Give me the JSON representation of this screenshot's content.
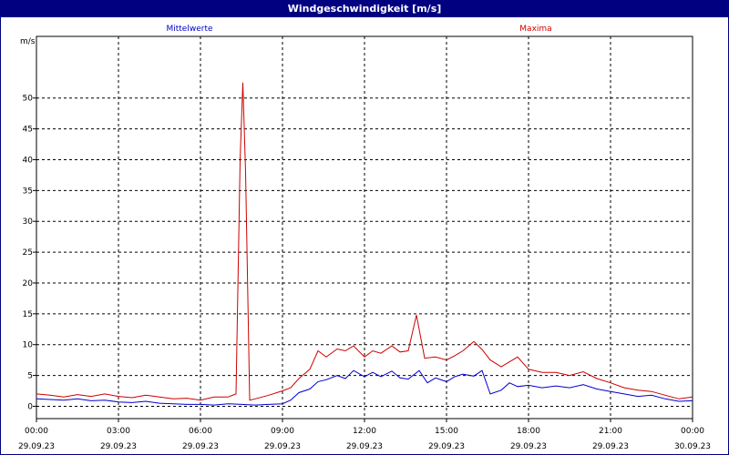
{
  "title": "Windgeschwindigkeit [m/s]",
  "colors": {
    "mittelwerte": "#0000cc",
    "maxima": "#cc0000",
    "titlebar": "#000080"
  },
  "chart_data": {
    "type": "line",
    "title": "Windgeschwindigkeit [m/s]",
    "ylabel": "m/s",
    "ylim": [
      -2,
      60
    ],
    "yticks": [
      0,
      5,
      10,
      15,
      20,
      25,
      30,
      35,
      40,
      45,
      50
    ],
    "xlim": [
      0,
      24
    ],
    "xticks": [
      {
        "x": 0,
        "time": "00:00",
        "date": "29.09.23"
      },
      {
        "x": 3,
        "time": "03:00",
        "date": "29.09.23"
      },
      {
        "x": 6,
        "time": "06:00",
        "date": "29.09.23"
      },
      {
        "x": 9,
        "time": "09:00",
        "date": "29.09.23"
      },
      {
        "x": 12,
        "time": "12:00",
        "date": "29.09.23"
      },
      {
        "x": 15,
        "time": "15:00",
        "date": "29.09.23"
      },
      {
        "x": 18,
        "time": "18:00",
        "date": "29.09.23"
      },
      {
        "x": 21,
        "time": "21:00",
        "date": "29.09.23"
      },
      {
        "x": 24,
        "time": "00:00",
        "date": "30.09.23"
      }
    ],
    "grid": true,
    "legend": "top",
    "series": [
      {
        "name": "Mittelwerte",
        "color": "#0000cc",
        "points": [
          [
            0,
            1.2
          ],
          [
            0.5,
            1.1
          ],
          [
            1,
            1.0
          ],
          [
            1.5,
            1.2
          ],
          [
            2,
            0.9
          ],
          [
            2.5,
            1.0
          ],
          [
            3,
            0.7
          ],
          [
            3.5,
            0.6
          ],
          [
            4,
            0.8
          ],
          [
            4.5,
            0.5
          ],
          [
            5,
            0.4
          ],
          [
            5.5,
            0.3
          ],
          [
            6,
            0.3
          ],
          [
            6.5,
            0.2
          ],
          [
            7,
            0.4
          ],
          [
            7.5,
            0.3
          ],
          [
            8,
            0.2
          ],
          [
            8.5,
            0.3
          ],
          [
            9,
            0.4
          ],
          [
            9.3,
            1.0
          ],
          [
            9.6,
            2.2
          ],
          [
            10,
            2.8
          ],
          [
            10.3,
            4.0
          ],
          [
            10.6,
            4.3
          ],
          [
            11,
            5.0
          ],
          [
            11.3,
            4.5
          ],
          [
            11.6,
            5.8
          ],
          [
            12,
            4.8
          ],
          [
            12.3,
            5.5
          ],
          [
            12.6,
            4.8
          ],
          [
            13,
            5.7
          ],
          [
            13.3,
            4.6
          ],
          [
            13.6,
            4.4
          ],
          [
            14,
            5.8
          ],
          [
            14.3,
            3.8
          ],
          [
            14.6,
            4.6
          ],
          [
            15,
            4.0
          ],
          [
            15.3,
            4.8
          ],
          [
            15.6,
            5.2
          ],
          [
            16,
            4.9
          ],
          [
            16.3,
            5.8
          ],
          [
            16.6,
            2.0
          ],
          [
            17,
            2.6
          ],
          [
            17.3,
            3.8
          ],
          [
            17.6,
            3.2
          ],
          [
            18,
            3.4
          ],
          [
            18.5,
            3.0
          ],
          [
            19,
            3.3
          ],
          [
            19.5,
            3.0
          ],
          [
            20,
            3.5
          ],
          [
            20.5,
            2.8
          ],
          [
            21,
            2.4
          ],
          [
            21.5,
            2.0
          ],
          [
            22,
            1.6
          ],
          [
            22.5,
            1.8
          ],
          [
            23,
            1.2
          ],
          [
            23.5,
            0.8
          ],
          [
            24,
            0.9
          ]
        ]
      },
      {
        "name": "Maxima",
        "color": "#cc0000",
        "points": [
          [
            0,
            2.0
          ],
          [
            0.5,
            1.8
          ],
          [
            1,
            1.5
          ],
          [
            1.5,
            1.9
          ],
          [
            2,
            1.6
          ],
          [
            2.5,
            2.0
          ],
          [
            3,
            1.6
          ],
          [
            3.5,
            1.4
          ],
          [
            4,
            1.8
          ],
          [
            4.5,
            1.5
          ],
          [
            5,
            1.2
          ],
          [
            5.5,
            1.3
          ],
          [
            6,
            1.0
          ],
          [
            6.5,
            1.5
          ],
          [
            7,
            1.5
          ],
          [
            7.3,
            2.0
          ],
          [
            7.45,
            40.0
          ],
          [
            7.55,
            52.5
          ],
          [
            7.65,
            38.0
          ],
          [
            7.8,
            1.0
          ],
          [
            8,
            1.2
          ],
          [
            8.5,
            1.8
          ],
          [
            9,
            2.5
          ],
          [
            9.3,
            3.0
          ],
          [
            9.6,
            4.5
          ],
          [
            10,
            6.0
          ],
          [
            10.3,
            9.0
          ],
          [
            10.6,
            8.0
          ],
          [
            11,
            9.3
          ],
          [
            11.3,
            9.0
          ],
          [
            11.6,
            9.8
          ],
          [
            12,
            8.0
          ],
          [
            12.3,
            9.0
          ],
          [
            12.6,
            8.6
          ],
          [
            13,
            9.8
          ],
          [
            13.3,
            8.8
          ],
          [
            13.6,
            9.0
          ],
          [
            13.9,
            14.8
          ],
          [
            14.2,
            7.8
          ],
          [
            14.6,
            8.0
          ],
          [
            15,
            7.5
          ],
          [
            15.3,
            8.2
          ],
          [
            15.6,
            9.0
          ],
          [
            16,
            10.5
          ],
          [
            16.3,
            9.2
          ],
          [
            16.6,
            7.5
          ],
          [
            17,
            6.4
          ],
          [
            17.3,
            7.2
          ],
          [
            17.6,
            8.0
          ],
          [
            18,
            6.0
          ],
          [
            18.5,
            5.5
          ],
          [
            19,
            5.5
          ],
          [
            19.5,
            5.0
          ],
          [
            20,
            5.6
          ],
          [
            20.5,
            4.5
          ],
          [
            21,
            3.8
          ],
          [
            21.5,
            3.0
          ],
          [
            22,
            2.6
          ],
          [
            22.5,
            2.4
          ],
          [
            23,
            1.8
          ],
          [
            23.5,
            1.2
          ],
          [
            24,
            1.5
          ]
        ]
      }
    ]
  }
}
